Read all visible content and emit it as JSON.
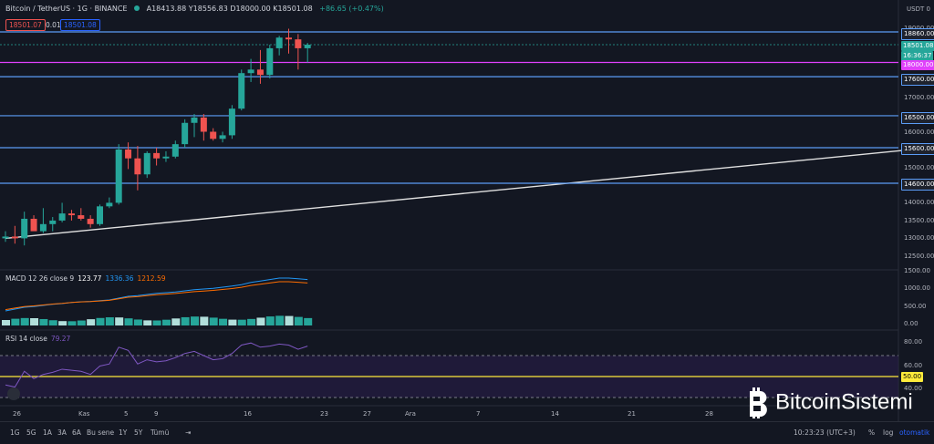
{
  "header": {
    "symbol": "Bitcoin / TetherUS · 1G · BINANCE",
    "ohlc": "A18413.88 Y18556.83 D18000.00 K18501.08",
    "change": "+86.65 (+0.47%)",
    "bid": "18501.07",
    "spread": "0.01",
    "ask": "18501.08",
    "currency": "USDT 0"
  },
  "macd": {
    "label": "MACD 12 26 close 9",
    "v1": "123.77",
    "v2": "1336.36",
    "v3": "1212.59"
  },
  "rsi": {
    "label": "RSI 14 close",
    "value": "79.27"
  },
  "price_tags": {
    "r1": "18860.00",
    "last": "18501.08",
    "countdown": "16:36:37",
    "magenta": "18000.00",
    "r2": "17600.00",
    "r3": "16500.00",
    "r4": "15600.00",
    "r5": "14600.00",
    "rsi_mid": "50.00"
  },
  "y_labels": [
    "19000.00",
    "17000.00",
    "16000.00",
    "15000.00",
    "14000.00",
    "13500.00",
    "13000.00",
    "12500.00"
  ],
  "macd_y": [
    "1500.00",
    "1000.00",
    "500.00",
    "0.00"
  ],
  "rsi_y": [
    "80.00",
    "60.00",
    "40.00"
  ],
  "x_labels": [
    "26",
    "Kas",
    "5",
    "9",
    "16",
    "23",
    "27",
    "Ara",
    "7",
    "14",
    "21",
    "28"
  ],
  "bottom": {
    "timeframes": [
      "1G",
      "5G",
      "1A",
      "3A",
      "6A",
      "Bu sene",
      "1Y",
      "5Y",
      "Tümü"
    ],
    "time": "10:23:23 (UTC+3)",
    "pct": "%",
    "log": "log",
    "auto": "otomatik"
  },
  "watermark": "BitcoinSistemi",
  "colors": {
    "up": "#26a69a",
    "down": "#ef5350",
    "hline": "#5b9cf6",
    "magenta": "#e040fb",
    "rsi": "#7e57c2",
    "macd": "#2196f3",
    "signal": "#ff6d00"
  },
  "chart_data": {
    "type": "candlestick",
    "title": "Bitcoin / TetherUS · 1G · BINANCE",
    "candles": [
      {
        "o": 13050,
        "h": 13250,
        "l": 12950,
        "c": 13100
      },
      {
        "o": 13100,
        "h": 13400,
        "l": 12900,
        "c": 13050
      },
      {
        "o": 13050,
        "h": 13800,
        "l": 12850,
        "c": 13600
      },
      {
        "o": 13600,
        "h": 13700,
        "l": 13300,
        "c": 13250
      },
      {
        "o": 13250,
        "h": 13900,
        "l": 13200,
        "c": 13450
      },
      {
        "o": 13450,
        "h": 13650,
        "l": 13250,
        "c": 13550
      },
      {
        "o": 13550,
        "h": 14050,
        "l": 13500,
        "c": 13750
      },
      {
        "o": 13750,
        "h": 13850,
        "l": 13550,
        "c": 13700
      },
      {
        "o": 13700,
        "h": 13900,
        "l": 13550,
        "c": 13600
      },
      {
        "o": 13600,
        "h": 13700,
        "l": 13350,
        "c": 13450
      },
      {
        "o": 13450,
        "h": 14000,
        "l": 13400,
        "c": 13950
      },
      {
        "o": 13950,
        "h": 14200,
        "l": 13900,
        "c": 14050
      },
      {
        "o": 14050,
        "h": 15700,
        "l": 14000,
        "c": 15550
      },
      {
        "o": 15550,
        "h": 15750,
        "l": 15000,
        "c": 15300
      },
      {
        "o": 15300,
        "h": 15650,
        "l": 14400,
        "c": 14850
      },
      {
        "o": 14850,
        "h": 15500,
        "l": 14750,
        "c": 15450
      },
      {
        "o": 15450,
        "h": 15600,
        "l": 15100,
        "c": 15300
      },
      {
        "o": 15300,
        "h": 15500,
        "l": 15200,
        "c": 15350
      },
      {
        "o": 15350,
        "h": 15800,
        "l": 15300,
        "c": 15700
      },
      {
        "o": 15700,
        "h": 16400,
        "l": 15600,
        "c": 16300
      },
      {
        "o": 16300,
        "h": 16550,
        "l": 15900,
        "c": 16450
      },
      {
        "o": 16450,
        "h": 16550,
        "l": 15800,
        "c": 16050
      },
      {
        "o": 16050,
        "h": 16150,
        "l": 15800,
        "c": 15850
      },
      {
        "o": 15850,
        "h": 16050,
        "l": 15750,
        "c": 15950
      },
      {
        "o": 15950,
        "h": 16800,
        "l": 15850,
        "c": 16700
      },
      {
        "o": 16700,
        "h": 17800,
        "l": 16650,
        "c": 17700
      },
      {
        "o": 17700,
        "h": 18100,
        "l": 17450,
        "c": 17800
      },
      {
        "o": 17800,
        "h": 18350,
        "l": 17400,
        "c": 17650
      },
      {
        "o": 17650,
        "h": 18500,
        "l": 17550,
        "c": 18400
      },
      {
        "o": 18400,
        "h": 18750,
        "l": 18200,
        "c": 18700
      },
      {
        "o": 18700,
        "h": 18950,
        "l": 18250,
        "c": 18650
      },
      {
        "o": 18650,
        "h": 18800,
        "l": 17800,
        "c": 18400
      },
      {
        "o": 18400,
        "h": 18550,
        "l": 18000,
        "c": 18500
      }
    ],
    "horizontal_levels": [
      18860,
      17600,
      16500,
      15600,
      14600
    ],
    "magenta_level": 18000,
    "trendline": {
      "from": {
        "i": 0,
        "price": 13050
      },
      "to": {
        "i": 98,
        "price": 15600
      }
    },
    "ylim": [
      12200,
      19300
    ],
    "macd_values": [
      0.1,
      0.15,
      0.2,
      0.22,
      0.25,
      0.28,
      0.3,
      0.33,
      0.35,
      0.36,
      0.38,
      0.4,
      0.45,
      0.5,
      0.52,
      0.55,
      0.58,
      0.6,
      0.62,
      0.65,
      0.68,
      0.7,
      0.72,
      0.75,
      0.78,
      0.82,
      0.88,
      0.92,
      0.96,
      1.0,
      1.0,
      0.98,
      0.96
    ],
    "rsi_values": [
      42,
      40,
      55,
      48,
      52,
      54,
      57,
      56,
      55,
      52,
      60,
      62,
      78,
      75,
      62,
      66,
      64,
      65,
      68,
      72,
      74,
      70,
      66,
      67,
      72,
      80,
      82,
      78,
      79,
      81,
      80,
      76,
      79
    ]
  }
}
